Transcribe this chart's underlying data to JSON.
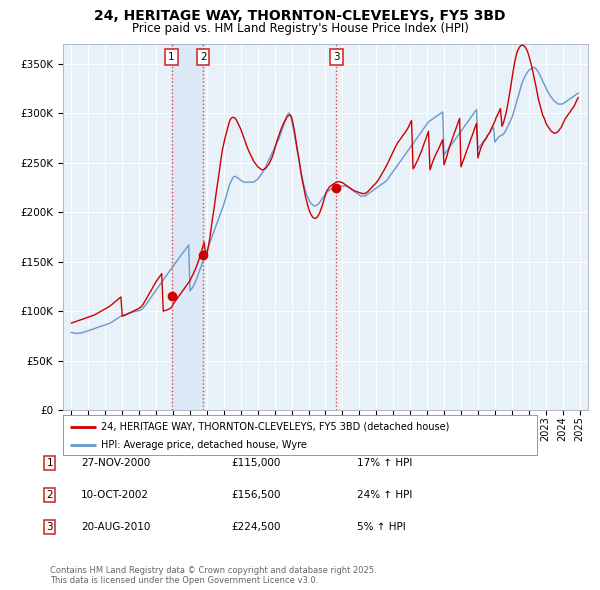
{
  "title": "24, HERITAGE WAY, THORNTON-CLEVELEYS, FY5 3BD",
  "subtitle": "Price paid vs. HM Land Registry's House Price Index (HPI)",
  "xlim": [
    1994.5,
    2025.5
  ],
  "ylim": [
    0,
    370000
  ],
  "yticks": [
    0,
    50000,
    100000,
    150000,
    200000,
    250000,
    300000,
    350000
  ],
  "ytick_labels": [
    "£0",
    "£50K",
    "£100K",
    "£150K",
    "£200K",
    "£250K",
    "£300K",
    "£350K"
  ],
  "background_color": "#ffffff",
  "plot_background": "#e8f0f8",
  "grid_color": "#ffffff",
  "sale_points": [
    {
      "label": "1",
      "date": 2000.91,
      "price": 115000,
      "hpi_pct": "17%",
      "date_str": "27-NOV-2000",
      "price_str": "£115,000"
    },
    {
      "label": "2",
      "date": 2002.78,
      "price": 156500,
      "hpi_pct": "24%",
      "date_str": "10-OCT-2002",
      "price_str": "£156,500"
    },
    {
      "label": "3",
      "date": 2010.64,
      "price": 224500,
      "hpi_pct": "5%",
      "date_str": "20-AUG-2010",
      "price_str": "£224,500"
    }
  ],
  "vline_color": "#dd4444",
  "house_line_color": "#cc0000",
  "hpi_line_color": "#6699cc",
  "band_color": "#dce8f5",
  "legend_house": "24, HERITAGE WAY, THORNTON-CLEVELEYS, FY5 3BD (detached house)",
  "legend_hpi": "HPI: Average price, detached house, Wyre",
  "footer": "Contains HM Land Registry data © Crown copyright and database right 2025.\nThis data is licensed under the Open Government Licence v3.0.",
  "hpi_data_years": [
    1995.0,
    1995.08,
    1995.17,
    1995.25,
    1995.33,
    1995.42,
    1995.5,
    1995.58,
    1995.67,
    1995.75,
    1995.83,
    1995.92,
    1996.0,
    1996.08,
    1996.17,
    1996.25,
    1996.33,
    1996.42,
    1996.5,
    1996.58,
    1996.67,
    1996.75,
    1996.83,
    1996.92,
    1997.0,
    1997.08,
    1997.17,
    1997.25,
    1997.33,
    1997.42,
    1997.5,
    1997.58,
    1997.67,
    1997.75,
    1997.83,
    1997.92,
    1998.0,
    1998.08,
    1998.17,
    1998.25,
    1998.33,
    1998.42,
    1998.5,
    1998.58,
    1998.67,
    1998.75,
    1998.83,
    1998.92,
    1999.0,
    1999.08,
    1999.17,
    1999.25,
    1999.33,
    1999.42,
    1999.5,
    1999.58,
    1999.67,
    1999.75,
    1999.83,
    1999.92,
    2000.0,
    2000.08,
    2000.17,
    2000.25,
    2000.33,
    2000.42,
    2000.5,
    2000.58,
    2000.67,
    2000.75,
    2000.83,
    2000.92,
    2001.0,
    2001.08,
    2001.17,
    2001.25,
    2001.33,
    2001.42,
    2001.5,
    2001.58,
    2001.67,
    2001.75,
    2001.83,
    2001.92,
    2002.0,
    2002.08,
    2002.17,
    2002.25,
    2002.33,
    2002.42,
    2002.5,
    2002.58,
    2002.67,
    2002.75,
    2002.83,
    2002.92,
    2003.0,
    2003.08,
    2003.17,
    2003.25,
    2003.33,
    2003.42,
    2003.5,
    2003.58,
    2003.67,
    2003.75,
    2003.83,
    2003.92,
    2004.0,
    2004.08,
    2004.17,
    2004.25,
    2004.33,
    2004.42,
    2004.5,
    2004.58,
    2004.67,
    2004.75,
    2004.83,
    2004.92,
    2005.0,
    2005.08,
    2005.17,
    2005.25,
    2005.33,
    2005.42,
    2005.5,
    2005.58,
    2005.67,
    2005.75,
    2005.83,
    2005.92,
    2006.0,
    2006.08,
    2006.17,
    2006.25,
    2006.33,
    2006.42,
    2006.5,
    2006.58,
    2006.67,
    2006.75,
    2006.83,
    2006.92,
    2007.0,
    2007.08,
    2007.17,
    2007.25,
    2007.33,
    2007.42,
    2007.5,
    2007.58,
    2007.67,
    2007.75,
    2007.83,
    2007.92,
    2008.0,
    2008.08,
    2008.17,
    2008.25,
    2008.33,
    2008.42,
    2008.5,
    2008.58,
    2008.67,
    2008.75,
    2008.83,
    2008.92,
    2009.0,
    2009.08,
    2009.17,
    2009.25,
    2009.33,
    2009.42,
    2009.5,
    2009.58,
    2009.67,
    2009.75,
    2009.83,
    2009.92,
    2010.0,
    2010.08,
    2010.17,
    2010.25,
    2010.33,
    2010.42,
    2010.5,
    2010.58,
    2010.67,
    2010.75,
    2010.83,
    2010.92,
    2011.0,
    2011.08,
    2011.17,
    2011.25,
    2011.33,
    2011.42,
    2011.5,
    2011.58,
    2011.67,
    2011.75,
    2011.83,
    2011.92,
    2012.0,
    2012.08,
    2012.17,
    2012.25,
    2012.33,
    2012.42,
    2012.5,
    2012.58,
    2012.67,
    2012.75,
    2012.83,
    2012.92,
    2013.0,
    2013.08,
    2013.17,
    2013.25,
    2013.33,
    2013.42,
    2013.5,
    2013.58,
    2013.67,
    2013.75,
    2013.83,
    2013.92,
    2014.0,
    2014.08,
    2014.17,
    2014.25,
    2014.33,
    2014.42,
    2014.5,
    2014.58,
    2014.67,
    2014.75,
    2014.83,
    2014.92,
    2015.0,
    2015.08,
    2015.17,
    2015.25,
    2015.33,
    2015.42,
    2015.5,
    2015.58,
    2015.67,
    2015.75,
    2015.83,
    2015.92,
    2016.0,
    2016.08,
    2016.17,
    2016.25,
    2016.33,
    2016.42,
    2016.5,
    2016.58,
    2016.67,
    2016.75,
    2016.83,
    2016.92,
    2017.0,
    2017.08,
    2017.17,
    2017.25,
    2017.33,
    2017.42,
    2017.5,
    2017.58,
    2017.67,
    2017.75,
    2017.83,
    2017.92,
    2018.0,
    2018.08,
    2018.17,
    2018.25,
    2018.33,
    2018.42,
    2018.5,
    2018.58,
    2018.67,
    2018.75,
    2018.83,
    2018.92,
    2019.0,
    2019.08,
    2019.17,
    2019.25,
    2019.33,
    2019.42,
    2019.5,
    2019.58,
    2019.67,
    2019.75,
    2019.83,
    2019.92,
    2020.0,
    2020.08,
    2020.17,
    2020.25,
    2020.33,
    2020.42,
    2020.5,
    2020.58,
    2020.67,
    2020.75,
    2020.83,
    2020.92,
    2021.0,
    2021.08,
    2021.17,
    2021.25,
    2021.33,
    2021.42,
    2021.5,
    2021.58,
    2021.67,
    2021.75,
    2021.83,
    2021.92,
    2022.0,
    2022.08,
    2022.17,
    2022.25,
    2022.33,
    2022.42,
    2022.5,
    2022.58,
    2022.67,
    2022.75,
    2022.83,
    2022.92,
    2023.0,
    2023.08,
    2023.17,
    2023.25,
    2023.33,
    2023.42,
    2023.5,
    2023.58,
    2023.67,
    2023.75,
    2023.83,
    2023.92,
    2024.0,
    2024.08,
    2024.17,
    2024.25,
    2024.33,
    2024.42,
    2024.5,
    2024.58,
    2024.67,
    2024.75,
    2024.83,
    2024.92
  ],
  "hpi_data_values": [
    78500,
    78200,
    77900,
    77700,
    77500,
    77700,
    77900,
    78100,
    78400,
    78900,
    79300,
    79800,
    80300,
    80800,
    81300,
    81800,
    82300,
    82800,
    83300,
    83800,
    84300,
    84800,
    85200,
    85700,
    86200,
    86700,
    87200,
    87700,
    88500,
    89300,
    90200,
    91200,
    92200,
    93100,
    94000,
    95000,
    95500,
    96000,
    96500,
    97000,
    97500,
    98000,
    98500,
    99000,
    99400,
    99800,
    100100,
    100300,
    100600,
    101100,
    102100,
    103600,
    105200,
    107100,
    109100,
    111100,
    113200,
    115200,
    117200,
    119300,
    121300,
    123400,
    125400,
    127400,
    129400,
    131400,
    133400,
    135500,
    137500,
    139500,
    141500,
    143500,
    145500,
    147400,
    149400,
    151300,
    153300,
    155200,
    157200,
    159100,
    161000,
    163000,
    164900,
    166900,
    120500,
    122400,
    124400,
    127300,
    130200,
    134100,
    138000,
    141900,
    145800,
    149700,
    153600,
    157500,
    161400,
    165300,
    169200,
    173100,
    177000,
    180900,
    184800,
    188700,
    192600,
    196500,
    200400,
    204300,
    208200,
    213100,
    218000,
    223000,
    228000,
    231000,
    234000,
    236000,
    236500,
    235500,
    234500,
    233500,
    232500,
    231500,
    230500,
    230500,
    230500,
    230500,
    230500,
    230500,
    230500,
    230500,
    231500,
    232500,
    233500,
    235500,
    237500,
    239500,
    241500,
    244500,
    247500,
    250500,
    253500,
    256500,
    259500,
    262500,
    265500,
    268500,
    271500,
    274500,
    278500,
    282500,
    286500,
    290500,
    294500,
    298500,
    300500,
    298500,
    293500,
    286500,
    278500,
    270500,
    262500,
    254500,
    246500,
    238500,
    231500,
    225500,
    220500,
    216500,
    213500,
    210500,
    208500,
    207500,
    206500,
    206500,
    207500,
    208500,
    210500,
    212500,
    214500,
    216500,
    218500,
    220500,
    221500,
    222500,
    223500,
    224500,
    225500,
    226500,
    226500,
    226500,
    226500,
    226500,
    226500,
    226500,
    226500,
    226500,
    225500,
    224500,
    223500,
    222500,
    221500,
    220500,
    219500,
    218500,
    217500,
    216500,
    216500,
    216500,
    216500,
    217500,
    218500,
    219500,
    220500,
    221500,
    222500,
    223500,
    224500,
    225500,
    226500,
    227500,
    228500,
    229500,
    230500,
    231500,
    233500,
    235500,
    237500,
    239500,
    241500,
    243500,
    245500,
    247500,
    249500,
    251500,
    253500,
    255500,
    257500,
    259500,
    261500,
    263500,
    265500,
    267500,
    269500,
    271500,
    273500,
    275500,
    277500,
    279500,
    281500,
    283500,
    285500,
    287500,
    289500,
    291500,
    292500,
    293500,
    294500,
    295500,
    296500,
    297500,
    298500,
    299500,
    300500,
    301500,
    258000,
    260000,
    262000,
    264000,
    266000,
    268000,
    270000,
    272000,
    274000,
    276000,
    278000,
    280000,
    282000,
    284000,
    286000,
    288000,
    290000,
    292000,
    294000,
    296000,
    298000,
    300000,
    302000,
    304000,
    264000,
    266000,
    268000,
    270000,
    272000,
    274000,
    276000,
    278000,
    280000,
    282000,
    284000,
    286000,
    271000,
    273000,
    275000,
    276500,
    277500,
    278000,
    279000,
    281000,
    283500,
    286500,
    289500,
    292500,
    295500,
    299500,
    304500,
    309500,
    314500,
    319500,
    324500,
    329500,
    333500,
    336500,
    339500,
    341500,
    343500,
    344500,
    345500,
    346500,
    346500,
    345500,
    343500,
    341500,
    338500,
    335500,
    332500,
    329500,
    326500,
    323500,
    320500,
    318500,
    316500,
    314500,
    312500,
    311500,
    310500,
    309500,
    309500,
    309500,
    309500,
    310500,
    311500,
    312500,
    313500,
    314500,
    315500,
    316500,
    317500,
    318500,
    319500,
    320500
  ],
  "house_data_years": [
    1995.0,
    1995.08,
    1995.17,
    1995.25,
    1995.33,
    1995.42,
    1995.5,
    1995.58,
    1995.67,
    1995.75,
    1995.83,
    1995.92,
    1996.0,
    1996.08,
    1996.17,
    1996.25,
    1996.33,
    1996.42,
    1996.5,
    1996.58,
    1996.67,
    1996.75,
    1996.83,
    1996.92,
    1997.0,
    1997.08,
    1997.17,
    1997.25,
    1997.33,
    1997.42,
    1997.5,
    1997.58,
    1997.67,
    1997.75,
    1997.83,
    1997.92,
    1998.0,
    1998.08,
    1998.17,
    1998.25,
    1998.33,
    1998.42,
    1998.5,
    1998.58,
    1998.67,
    1998.75,
    1998.83,
    1998.92,
    1999.0,
    1999.08,
    1999.17,
    1999.25,
    1999.33,
    1999.42,
    1999.5,
    1999.58,
    1999.67,
    1999.75,
    1999.83,
    1999.92,
    2000.0,
    2000.08,
    2000.17,
    2000.25,
    2000.33,
    2000.42,
    2000.5,
    2000.58,
    2000.67,
    2000.75,
    2000.83,
    2000.92,
    2001.0,
    2001.08,
    2001.17,
    2001.25,
    2001.33,
    2001.42,
    2001.5,
    2001.58,
    2001.67,
    2001.75,
    2001.83,
    2001.92,
    2002.0,
    2002.08,
    2002.17,
    2002.25,
    2002.33,
    2002.42,
    2002.5,
    2002.58,
    2002.67,
    2002.75,
    2002.83,
    2002.92,
    2003.0,
    2003.08,
    2003.17,
    2003.25,
    2003.33,
    2003.42,
    2003.5,
    2003.58,
    2003.67,
    2003.75,
    2003.83,
    2003.92,
    2004.0,
    2004.08,
    2004.17,
    2004.25,
    2004.33,
    2004.42,
    2004.5,
    2004.58,
    2004.67,
    2004.75,
    2004.83,
    2004.92,
    2005.0,
    2005.08,
    2005.17,
    2005.25,
    2005.33,
    2005.42,
    2005.5,
    2005.58,
    2005.67,
    2005.75,
    2005.83,
    2005.92,
    2006.0,
    2006.08,
    2006.17,
    2006.25,
    2006.33,
    2006.42,
    2006.5,
    2006.58,
    2006.67,
    2006.75,
    2006.83,
    2006.92,
    2007.0,
    2007.08,
    2007.17,
    2007.25,
    2007.33,
    2007.42,
    2007.5,
    2007.58,
    2007.67,
    2007.75,
    2007.83,
    2007.92,
    2008.0,
    2008.08,
    2008.17,
    2008.25,
    2008.33,
    2008.42,
    2008.5,
    2008.58,
    2008.67,
    2008.75,
    2008.83,
    2008.92,
    2009.0,
    2009.08,
    2009.17,
    2009.25,
    2009.33,
    2009.42,
    2009.5,
    2009.58,
    2009.67,
    2009.75,
    2009.83,
    2009.92,
    2010.0,
    2010.08,
    2010.17,
    2010.25,
    2010.33,
    2010.42,
    2010.5,
    2010.58,
    2010.67,
    2010.75,
    2010.83,
    2010.92,
    2011.0,
    2011.08,
    2011.17,
    2011.25,
    2011.33,
    2011.42,
    2011.5,
    2011.58,
    2011.67,
    2011.75,
    2011.83,
    2011.92,
    2012.0,
    2012.08,
    2012.17,
    2012.25,
    2012.33,
    2012.42,
    2012.5,
    2012.58,
    2012.67,
    2012.75,
    2012.83,
    2012.92,
    2013.0,
    2013.08,
    2013.17,
    2013.25,
    2013.33,
    2013.42,
    2013.5,
    2013.58,
    2013.67,
    2013.75,
    2013.83,
    2013.92,
    2014.0,
    2014.08,
    2014.17,
    2014.25,
    2014.33,
    2014.42,
    2014.5,
    2014.58,
    2014.67,
    2014.75,
    2014.83,
    2014.92,
    2015.0,
    2015.08,
    2015.17,
    2015.25,
    2015.33,
    2015.42,
    2015.5,
    2015.58,
    2015.67,
    2015.75,
    2015.83,
    2015.92,
    2016.0,
    2016.08,
    2016.17,
    2016.25,
    2016.33,
    2016.42,
    2016.5,
    2016.58,
    2016.67,
    2016.75,
    2016.83,
    2016.92,
    2017.0,
    2017.08,
    2017.17,
    2017.25,
    2017.33,
    2017.42,
    2017.5,
    2017.58,
    2017.67,
    2017.75,
    2017.83,
    2017.92,
    2018.0,
    2018.08,
    2018.17,
    2018.25,
    2018.33,
    2018.42,
    2018.5,
    2018.58,
    2018.67,
    2018.75,
    2018.83,
    2018.92,
    2019.0,
    2019.08,
    2019.17,
    2019.25,
    2019.33,
    2019.42,
    2019.5,
    2019.58,
    2019.67,
    2019.75,
    2019.83,
    2019.92,
    2020.0,
    2020.08,
    2020.17,
    2020.25,
    2020.33,
    2020.42,
    2020.5,
    2020.58,
    2020.67,
    2020.75,
    2020.83,
    2020.92,
    2021.0,
    2021.08,
    2021.17,
    2021.25,
    2021.33,
    2021.42,
    2021.5,
    2021.58,
    2021.67,
    2021.75,
    2021.83,
    2021.92,
    2022.0,
    2022.08,
    2022.17,
    2022.25,
    2022.33,
    2022.42,
    2022.5,
    2022.58,
    2022.67,
    2022.75,
    2022.83,
    2022.92,
    2023.0,
    2023.08,
    2023.17,
    2023.25,
    2023.33,
    2023.42,
    2023.5,
    2023.58,
    2023.67,
    2023.75,
    2023.83,
    2023.92,
    2024.0,
    2024.08,
    2024.17,
    2024.25,
    2024.33,
    2024.42,
    2024.5,
    2024.58,
    2024.67,
    2024.75,
    2024.83,
    2024.92
  ],
  "house_data_values": [
    88000,
    88500,
    89000,
    89500,
    90000,
    90500,
    91000,
    91500,
    92000,
    92500,
    93000,
    93500,
    94000,
    94500,
    95000,
    95500,
    96000,
    96800,
    97600,
    98400,
    99200,
    100000,
    100800,
    101600,
    102400,
    103200,
    104000,
    105000,
    106000,
    107200,
    108400,
    109600,
    110800,
    112000,
    113200,
    114400,
    95000,
    95500,
    96000,
    96700,
    97400,
    98100,
    98800,
    99500,
    100200,
    100900,
    101600,
    102300,
    103000,
    104000,
    105500,
    107500,
    110000,
    112500,
    115000,
    117500,
    120000,
    122500,
    125000,
    127500,
    130000,
    132000,
    134000,
    136000,
    138000,
    100000,
    100500,
    101000,
    101500,
    102000,
    103000,
    104000,
    107000,
    109000,
    111000,
    113000,
    115000,
    117000,
    119000,
    121000,
    123000,
    125000,
    127000,
    129000,
    131000,
    134000,
    137000,
    140000,
    143000,
    147000,
    151000,
    155000,
    160000,
    165000,
    170000,
    156500,
    158000,
    165000,
    174000,
    184000,
    194000,
    204000,
    214000,
    224000,
    234000,
    244000,
    254000,
    264000,
    270000,
    276000,
    282000,
    287000,
    292000,
    295000,
    296000,
    296000,
    295000,
    293000,
    290000,
    287000,
    284000,
    280000,
    276000,
    272000,
    268000,
    264000,
    261000,
    258000,
    255000,
    252000,
    250000,
    248000,
    246000,
    245000,
    244000,
    243000,
    243000,
    244000,
    245000,
    247000,
    249000,
    252000,
    255000,
    259000,
    264000,
    269000,
    274000,
    278000,
    282000,
    286000,
    289000,
    292000,
    295000,
    297000,
    298000,
    298500,
    296000,
    290000,
    282000,
    273000,
    264000,
    255000,
    246000,
    237000,
    229000,
    222000,
    215000,
    209000,
    204000,
    200000,
    197000,
    195000,
    194000,
    194000,
    195000,
    197000,
    200000,
    204000,
    208000,
    213000,
    218000,
    222000,
    224000,
    226000,
    227000,
    228000,
    229000,
    230000,
    230500,
    231000,
    231000,
    230500,
    230000,
    229000,
    228000,
    227000,
    226000,
    225000,
    224000,
    223000,
    222000,
    221500,
    221000,
    220500,
    220000,
    219500,
    219000,
    219000,
    219000,
    220000,
    221000,
    222500,
    224000,
    225500,
    227000,
    228500,
    230000,
    232000,
    234000,
    236500,
    239000,
    241500,
    244000,
    246500,
    249500,
    252500,
    255500,
    258500,
    261500,
    264500,
    267500,
    270000,
    272000,
    274000,
    276000,
    278000,
    280000,
    282000,
    284000,
    287000,
    290000,
    293000,
    244000,
    246000,
    249000,
    252000,
    255000,
    258500,
    262000,
    266000,
    270000,
    274000,
    278000,
    282000,
    243000,
    247000,
    251000,
    255000,
    258000,
    261000,
    264000,
    267000,
    270000,
    273500,
    248000,
    252000,
    257000,
    262000,
    267000,
    271000,
    275000,
    279000,
    283000,
    287000,
    291000,
    295000,
    246000,
    250000,
    254000,
    258000,
    262000,
    266000,
    270000,
    274000,
    278000,
    282000,
    286000,
    290000,
    255000,
    260000,
    265000,
    268000,
    271000,
    273000,
    275000,
    278000,
    280000,
    283000,
    286000,
    289000,
    292000,
    296000,
    299000,
    302000,
    305000,
    287000,
    290000,
    295000,
    301000,
    308000,
    316000,
    325000,
    334000,
    343000,
    352000,
    358000,
    363000,
    366000,
    368000,
    369000,
    369000,
    368000,
    366000,
    363000,
    359000,
    354000,
    348000,
    342000,
    335000,
    328000,
    321000,
    314000,
    308000,
    303000,
    298000,
    295000,
    291000,
    288000,
    286000,
    284000,
    282000,
    281000,
    280000,
    280000,
    281000,
    282000,
    284000,
    286000,
    289000,
    292000,
    295000,
    297000,
    299000,
    301000,
    303000,
    305000,
    307000,
    310000,
    313000,
    316000
  ]
}
